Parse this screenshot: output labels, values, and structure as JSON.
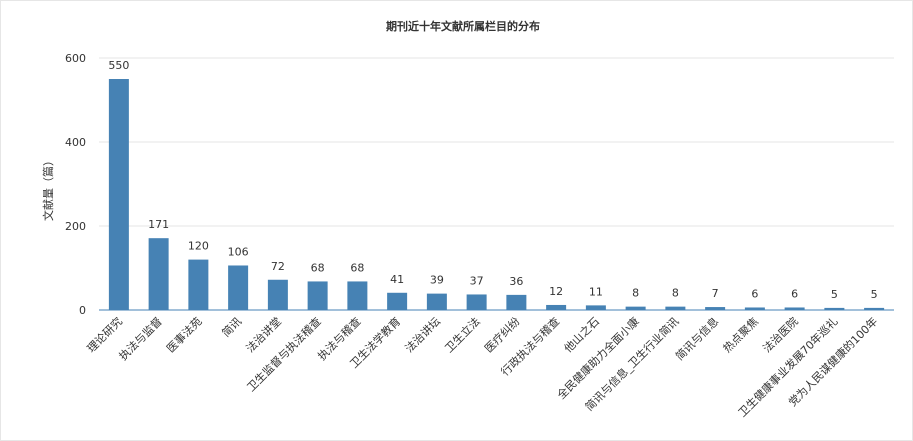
{
  "chart_data": {
    "type": "bar",
    "title": "期刊近十年文献所属栏目的分布",
    "xlabel": "",
    "ylabel": "文献量（篇）",
    "ylim": [
      0,
      600
    ],
    "yticks": [
      0,
      200,
      400,
      600
    ],
    "grid": true,
    "legend": "none",
    "bar_color": "#4682b4",
    "categories": [
      "理论研究",
      "执法与监督",
      "医事法苑",
      "简讯",
      "法治讲堂",
      "卫生监督与执法稽查",
      "执法与稽查",
      "卫生法学教育",
      "法治讲坛",
      "卫生立法",
      "医疗纠纷",
      "行政执法与稽查",
      "他山之石",
      "全民健康助力全面小康",
      "简讯与信息_卫生行业简讯",
      "简讯与信息",
      "热点聚焦",
      "法治医院",
      "卫生健康事业发展70年巡礼",
      "党为人民谋健康的100年"
    ],
    "values": [
      550,
      171,
      120,
      106,
      72,
      68,
      68,
      41,
      39,
      37,
      36,
      12,
      11,
      8,
      8,
      7,
      6,
      6,
      5,
      5
    ]
  }
}
